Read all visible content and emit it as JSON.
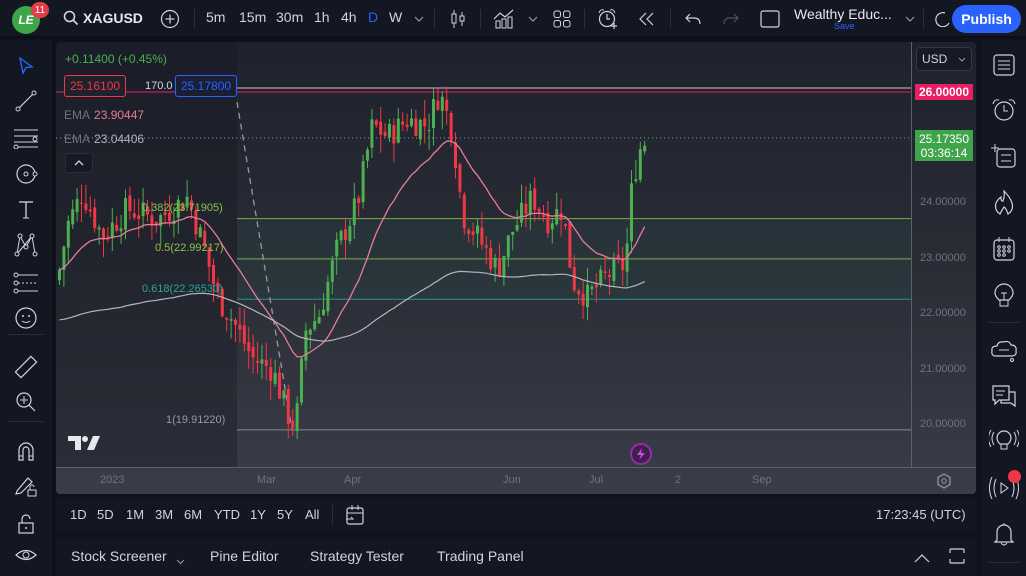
{
  "topbar": {
    "logo_text": "LE",
    "notification_count": "11",
    "symbol": "XAGUSD",
    "intervals": [
      "5m",
      "15m",
      "30m",
      "1h",
      "4h",
      "D",
      "W"
    ],
    "active_interval": "D",
    "layout_name": "Wealthy Educ...",
    "layout_save": "Save",
    "publish_label": "Publish",
    "accent_color": "#2962ff"
  },
  "legend": {
    "change": "+0.11400 (+0.45%)",
    "sell_price": "25.16100",
    "spread": "170.0",
    "buy_price": "25.17800",
    "ema_label": "EMA",
    "ema1_value": "23.90447",
    "ema2_value": "23.04406"
  },
  "fib": {
    "level_0382": "0.382(23.71905)",
    "level_05": "0.5(22.99217)",
    "level_0618": "0.618(22.26530)",
    "level_1": "1(19.91220)"
  },
  "price_axis": {
    "currency": "USD",
    "alert_price": "26.00000",
    "current_price": "25.17350",
    "countdown": "03:36:14",
    "labels": [
      "24.00000",
      "23.00000",
      "22.00000",
      "21.00000",
      "20.00000"
    ],
    "colors": {
      "alert": "#e91e63",
      "current": "#3fa54a"
    }
  },
  "time_axis": {
    "labels": [
      "2023",
      "Mar",
      "Apr",
      "Jun",
      "Jul",
      "2",
      "Sep"
    ]
  },
  "range_bar": {
    "ranges": [
      "1D",
      "5D",
      "1M",
      "3M",
      "6M",
      "YTD",
      "1Y",
      "5Y",
      "All"
    ],
    "clock": "17:23:45 (UTC)"
  },
  "bottom_panel": {
    "tabs": [
      "Stock Screener",
      "Pine Editor",
      "Strategy Tester",
      "Trading Panel"
    ]
  },
  "chart_data": {
    "type": "candlestick",
    "symbol": "XAGUSD",
    "interval": "D",
    "y_range": [
      19.7,
      26.3
    ],
    "x_labels": [
      "2023",
      "Mar",
      "Apr",
      "Jun",
      "Jul",
      "2",
      "Sep"
    ],
    "horizontal_lines": [
      {
        "price": 26.0,
        "color": "#e91e63",
        "label": "26.00000"
      },
      {
        "price": 25.1735,
        "color": "#9598a1",
        "style": "dotted",
        "label": "current"
      }
    ],
    "fibonacci": [
      {
        "ratio": 0.382,
        "price": 23.71905
      },
      {
        "ratio": 0.5,
        "price": 22.99217
      },
      {
        "ratio": 0.618,
        "price": 22.2653
      },
      {
        "ratio": 1,
        "price": 19.9122
      }
    ],
    "indicators": [
      {
        "name": "EMA",
        "value": 23.90447,
        "color": "#e87b9a"
      },
      {
        "name": "EMA",
        "value": 23.04406,
        "color": "#b2b5be"
      }
    ],
    "current": {
      "price": 25.1735,
      "change": 0.114,
      "change_pct": 0.45
    }
  }
}
